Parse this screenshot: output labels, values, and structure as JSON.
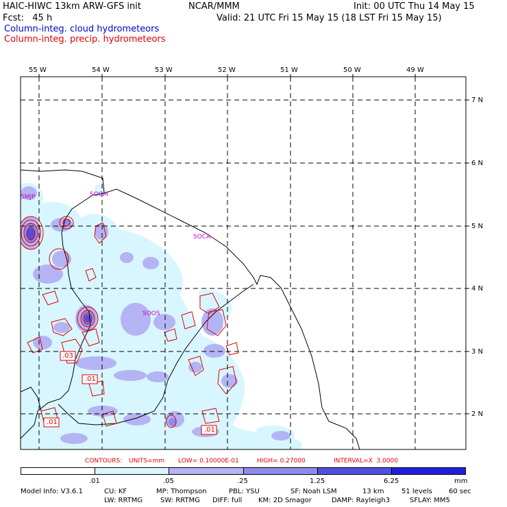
{
  "header": {
    "model": "HAIC-HIWC 13km ARW-GFS init",
    "org": "NCAR/MMM",
    "init": "Init: 00 UTC Thu 14 May 15",
    "fcst": "Fcst:   45 h",
    "valid": "Valid: 21 UTC Fri 15 May 15 (18 LST Fri 15 May 15)",
    "field_cloud": "Column-integ. cloud hydrometeors",
    "field_precip": "Column-integ. precip. hydrometeors"
  },
  "colors": {
    "cloud_title": "#0000d0",
    "precip_title": "#e00000",
    "station": "#cc00cc",
    "contour": "#e00000",
    "shade1": "#d8f6ff",
    "shade2": "#b4b4f4",
    "shade3": "#8c8cec",
    "shade4": "#5050e0",
    "shade5": "#2020dc"
  },
  "axes": {
    "lon_labels": [
      "55 W",
      "54 W",
      "53 W",
      "52 W",
      "51 W",
      "50 W",
      "49 W"
    ],
    "lat_labels": [
      "7 N",
      "6 N",
      "5 N",
      "4 N",
      "3 N",
      "2 N"
    ]
  },
  "stations": [
    "SMJP",
    "SOCM",
    "SOCA",
    "SOOS"
  ],
  "contour_labels": [
    ".03",
    ".01",
    ".01",
    ".01"
  ],
  "contour_info": {
    "contours": "CONTOURS:",
    "units": "UNITS=mm",
    "low": "LOW= 0.10000E-01",
    "high": "HIGH= 0.27000",
    "interval": "INTERVAL=X  3.0000"
  },
  "colorbar": {
    "ticks": [
      ".01",
      ".05",
      ".25",
      "1.25",
      "6.25"
    ],
    "unit": "mm"
  },
  "footer": {
    "model_info": "Model Info: V3.6.1",
    "cu": "CU: KF",
    "mp": "MP: Thompson",
    "pbl": "PBL: YSU",
    "sf": "SF: Noah LSM",
    "res": "13 km",
    "levels": "51 levels",
    "dt": "60 sec",
    "lw": "LW: RRTMG",
    "sw": "SW: RRTMG",
    "diff": "DIFF: full",
    "km": "KM: 2D Smagor",
    "damp": "DAMP: Rayleigh3",
    "sflay": "SFLAY: MM5"
  }
}
